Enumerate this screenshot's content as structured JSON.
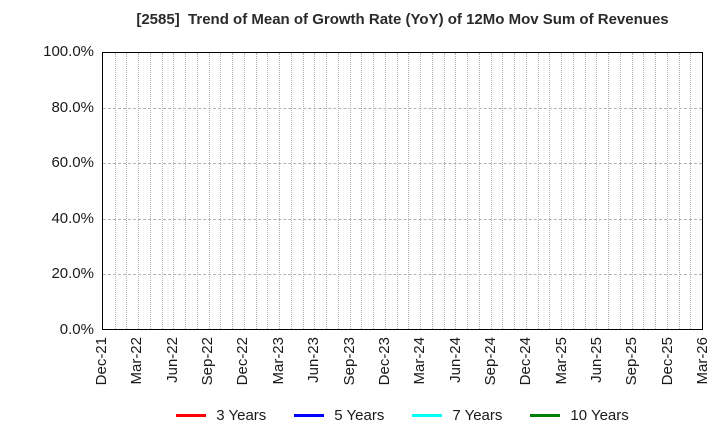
{
  "title": "[2585]  Trend of Mean of Growth Rate (YoY) of 12Mo Mov Sum of Revenues",
  "chart_data": {
    "type": "line",
    "title": "[2585]  Trend of Mean of Growth Rate (YoY) of 12Mo Mov Sum of Revenues",
    "xlabel": "",
    "ylabel": "",
    "x_tick_labels": [
      "Dec-21",
      "Mar-22",
      "Jun-22",
      "Sep-22",
      "Dec-22",
      "Mar-23",
      "Jun-23",
      "Sep-23",
      "Dec-23",
      "Mar-24",
      "Jun-24",
      "Sep-24",
      "Dec-24",
      "Mar-25",
      "Jun-25",
      "Sep-25",
      "Dec-25",
      "Mar-26"
    ],
    "months_per_tick": 3,
    "total_months": 51,
    "y_tick_labels": [
      "0.0%",
      "20.0%",
      "40.0%",
      "60.0%",
      "80.0%",
      "100.0%"
    ],
    "ylim": [
      0,
      100
    ],
    "grid": "on",
    "grid_style": {
      "vertical": "dotted-monthly",
      "horizontal": "dashed-every-20pct"
    },
    "legend_position": "bottom-center",
    "series": [
      {
        "name": "3 Years",
        "color": "#ff0000",
        "values": []
      },
      {
        "name": "5 Years",
        "color": "#0000ff",
        "values": []
      },
      {
        "name": "7 Years",
        "color": "#00ffff",
        "values": []
      },
      {
        "name": "10 Years",
        "color": "#008000",
        "values": []
      }
    ]
  },
  "colors": {
    "background": "#ffffff",
    "axis_border": "#000000",
    "gridline": "#b4b4b4",
    "tick_text": "#1a1a1a",
    "title_text": "#2b2b2b"
  }
}
